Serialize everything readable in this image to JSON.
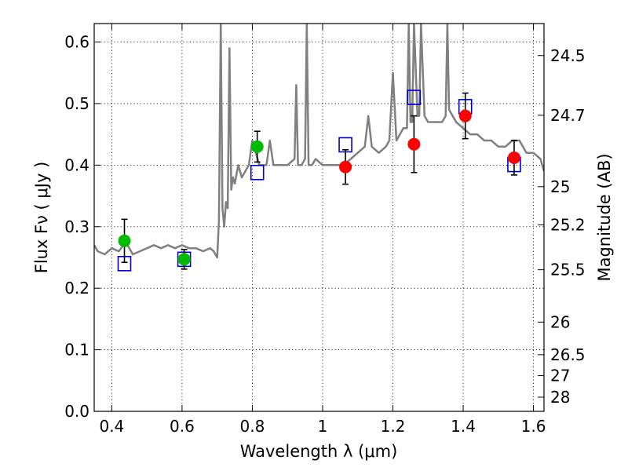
{
  "chart_data": {
    "type": "scatter",
    "xlabel": "Wavelength  λ (μm)",
    "ylabel": "Flux  Fν  ( μJy )",
    "ylabel_right": "Magnitude (AB)",
    "xlim": [
      0.35,
      1.63
    ],
    "ylim": [
      0.0,
      0.63
    ],
    "grid": true,
    "x_ticks": [
      0.4,
      0.6,
      0.8,
      1.0,
      1.2,
      1.4,
      1.6
    ],
    "x_tick_labels": [
      "0.4",
      "0.6",
      "0.8",
      "1",
      "1.2",
      "1.4",
      "1.6"
    ],
    "y_ticks": [
      0.0,
      0.1,
      0.2,
      0.3,
      0.4,
      0.5,
      0.6
    ],
    "y_tick_labels": [
      "0.0",
      "0.1",
      "0.2",
      "0.3",
      "0.4",
      "0.5",
      "0.6"
    ],
    "right_ticks": [
      {
        "label": "24.5",
        "flux": 0.578
      },
      {
        "label": "24.7",
        "flux": 0.481
      },
      {
        "label": "25",
        "flux": 0.365
      },
      {
        "label": "25.2",
        "flux": 0.303
      },
      {
        "label": "25.5",
        "flux": 0.23
      },
      {
        "label": "26",
        "flux": 0.145
      },
      {
        "label": "26.5",
        "flux": 0.092
      },
      {
        "label": "27",
        "flux": 0.058
      },
      {
        "label": "28",
        "flux": 0.023
      }
    ],
    "colors": {
      "spectrum": "#808080",
      "green_points": "#00bb00",
      "red_points": "#ff0000",
      "model_squares": "#0000cc",
      "error_bars": "#000000"
    },
    "spectrum": {
      "x": [
        0.35,
        0.36,
        0.38,
        0.4,
        0.42,
        0.44,
        0.46,
        0.48,
        0.5,
        0.52,
        0.54,
        0.56,
        0.58,
        0.6,
        0.62,
        0.64,
        0.66,
        0.68,
        0.69,
        0.7,
        0.705,
        0.71,
        0.715,
        0.72,
        0.725,
        0.73,
        0.735,
        0.74,
        0.745,
        0.75,
        0.76,
        0.77,
        0.78,
        0.79,
        0.8,
        0.82,
        0.84,
        0.85,
        0.86,
        0.88,
        0.9,
        0.92,
        0.925,
        0.93,
        0.94,
        0.95,
        0.955,
        0.96,
        0.97,
        0.98,
        1.0,
        1.02,
        1.04,
        1.06,
        1.08,
        1.1,
        1.12,
        1.13,
        1.14,
        1.16,
        1.18,
        1.19,
        1.2,
        1.21,
        1.22,
        1.23,
        1.24,
        1.245,
        1.25,
        1.255,
        1.26,
        1.27,
        1.275,
        1.28,
        1.29,
        1.3,
        1.32,
        1.34,
        1.35,
        1.355,
        1.36,
        1.37,
        1.38,
        1.4,
        1.42,
        1.44,
        1.46,
        1.48,
        1.5,
        1.52,
        1.54,
        1.56,
        1.58,
        1.6,
        1.62,
        1.63
      ],
      "y": [
        0.27,
        0.26,
        0.255,
        0.265,
        0.26,
        0.275,
        0.255,
        0.26,
        0.265,
        0.27,
        0.265,
        0.27,
        0.265,
        0.27,
        0.265,
        0.265,
        0.26,
        0.265,
        0.26,
        0.25,
        0.31,
        0.63,
        0.33,
        0.3,
        0.34,
        0.33,
        0.59,
        0.36,
        0.38,
        0.37,
        0.4,
        0.38,
        0.39,
        0.4,
        0.44,
        0.4,
        0.4,
        0.44,
        0.4,
        0.4,
        0.4,
        0.41,
        0.53,
        0.4,
        0.4,
        0.41,
        0.63,
        0.4,
        0.4,
        0.41,
        0.4,
        0.4,
        0.4,
        0.4,
        0.41,
        0.42,
        0.43,
        0.48,
        0.43,
        0.42,
        0.43,
        0.44,
        0.55,
        0.44,
        0.45,
        0.46,
        0.46,
        0.63,
        0.47,
        0.47,
        0.63,
        0.48,
        0.48,
        0.63,
        0.48,
        0.47,
        0.47,
        0.47,
        0.48,
        0.63,
        0.49,
        0.48,
        0.47,
        0.46,
        0.45,
        0.45,
        0.44,
        0.44,
        0.43,
        0.43,
        0.44,
        0.44,
        0.42,
        0.42,
        0.41,
        0.39
      ]
    },
    "green_points": [
      {
        "x": 0.436,
        "y": 0.277,
        "err": 0.035
      },
      {
        "x": 0.606,
        "y": 0.247,
        "err": 0.016
      },
      {
        "x": 0.814,
        "y": 0.43,
        "err": 0.025
      }
    ],
    "red_points": [
      {
        "x": 1.065,
        "y": 0.397,
        "err": 0.028
      },
      {
        "x": 1.26,
        "y": 0.434,
        "err": 0.046
      },
      {
        "x": 1.406,
        "y": 0.48,
        "err": 0.037
      },
      {
        "x": 1.545,
        "y": 0.412,
        "err": 0.028
      }
    ],
    "model_squares": [
      {
        "x": 0.436,
        "y": 0.24
      },
      {
        "x": 0.606,
        "y": 0.247
      },
      {
        "x": 0.814,
        "y": 0.388
      },
      {
        "x": 1.065,
        "y": 0.433
      },
      {
        "x": 1.26,
        "y": 0.51
      },
      {
        "x": 1.406,
        "y": 0.495
      },
      {
        "x": 1.545,
        "y": 0.401
      }
    ]
  }
}
